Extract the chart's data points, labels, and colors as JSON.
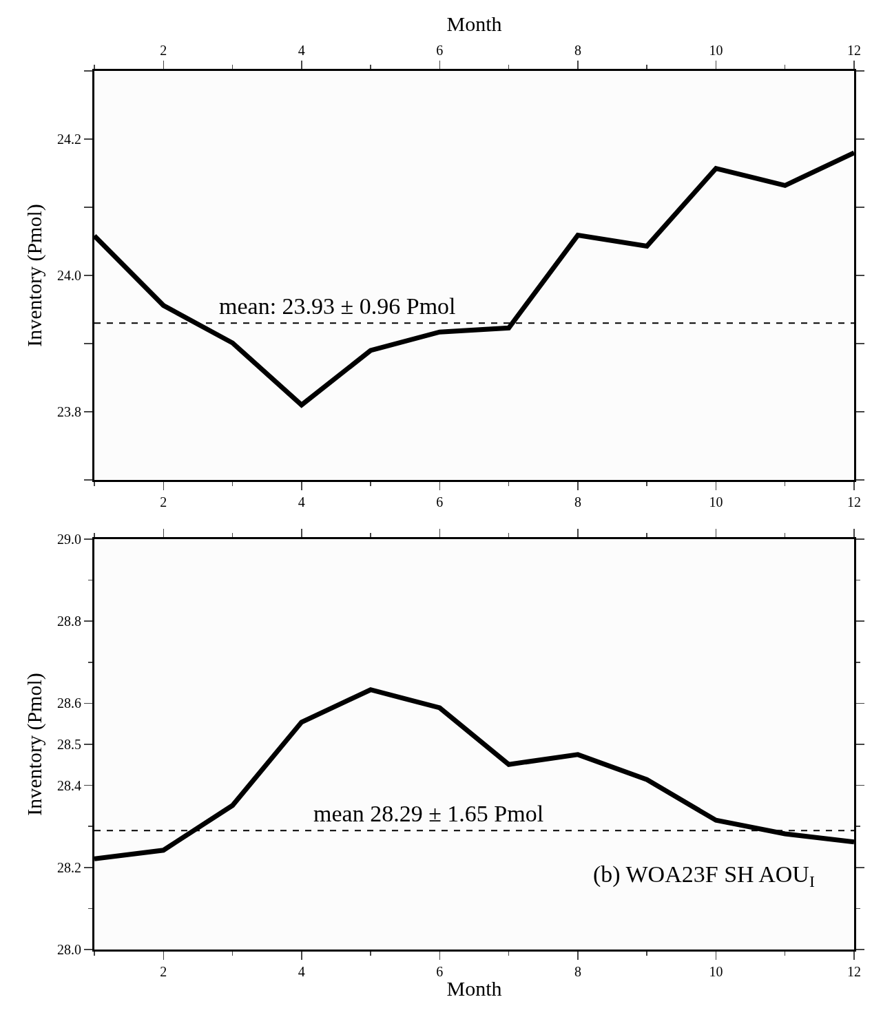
{
  "chart_data": [
    {
      "type": "line",
      "x2label": "Month",
      "ylabel": "Inventory (Pmol)",
      "x": [
        1,
        2,
        3,
        4,
        5,
        6,
        7,
        8,
        9,
        10,
        11,
        12
      ],
      "series": [
        {
          "color": "#000000",
          "values": [
            24.058,
            23.956,
            23.901,
            23.81,
            23.89,
            23.917,
            23.923,
            24.059,
            24.043,
            24.157,
            24.132,
            24.18
          ]
        }
      ],
      "xlim": [
        1,
        12
      ],
      "xticks": [
        {
          "value": 1,
          "label": null
        },
        2,
        {
          "value": 3,
          "label": null
        },
        4,
        {
          "value": 5,
          "label": null
        },
        6,
        {
          "value": 7,
          "label": null
        },
        8,
        {
          "value": 9,
          "label": null
        },
        10,
        {
          "value": 11,
          "label": null
        },
        12
      ],
      "x2lim": [
        1,
        12
      ],
      "x2ticks": [
        {
          "value": 1,
          "label": null
        },
        2,
        {
          "value": 3,
          "label": null
        },
        4,
        {
          "value": 5,
          "label": null
        },
        6,
        {
          "value": 7,
          "label": null
        },
        8,
        {
          "value": 9,
          "label": null
        },
        10,
        {
          "value": 11,
          "label": null
        },
        12
      ],
      "ylim": [
        23.7,
        24.3
      ],
      "yticks": [
        {
          "value": 23.7,
          "label": null
        },
        "23.8",
        {
          "value": 23.9,
          "label": null
        },
        {
          "value": 24.0,
          "label": "24.0"
        },
        {
          "value": 24.1,
          "label": null
        },
        {
          "value": 24.2,
          "label": "24.2"
        },
        {
          "value": 24.3,
          "label": null
        }
      ],
      "ref_lines": [
        {
          "axis": "y",
          "value": 23.93,
          "label": "mean: 23.93 ± 0.96 Pmol",
          "color": "#000000",
          "line_style": "dashed"
        }
      ],
      "grid": false,
      "marker": "none",
      "line_style": "solid"
    },
    {
      "type": "line",
      "xlabel": "Month",
      "ylabel": "Inventory (Pmol)",
      "x": [
        1,
        2,
        3,
        4,
        5,
        6,
        7,
        8,
        9,
        10,
        11,
        12
      ],
      "series": [
        {
          "color": "#000000",
          "values": [
            28.221,
            28.242,
            28.351,
            28.554,
            28.633,
            28.589,
            28.451,
            28.475,
            28.414,
            28.315,
            28.282,
            28.262
          ]
        }
      ],
      "xlim": [
        1,
        12
      ],
      "xticks": [
        {
          "value": 1,
          "label": null
        },
        2,
        {
          "value": 3,
          "label": null
        },
        4,
        {
          "value": 5,
          "label": null
        },
        6,
        {
          "value": 7,
          "label": null
        },
        8,
        {
          "value": 9,
          "label": null
        },
        10,
        {
          "value": 11,
          "label": null
        },
        12
      ],
      "ylim": [
        28.0,
        29.0
      ],
      "yticks": [
        {
          "value": 28.0,
          "label": "28.0"
        },
        {
          "value": 28.1,
          "label": null
        },
        28.2,
        {
          "value": 28.3,
          "label": null
        },
        28.4,
        28.5,
        28.6,
        {
          "value": 28.7,
          "label": null
        },
        28.8,
        {
          "value": 28.9,
          "label": null
        },
        {
          "value": 29.0,
          "label": "29.0"
        }
      ],
      "ref_lines": [
        {
          "axis": "y",
          "value": 28.29,
          "label": "mean 28.29 ± 1.65 Pmol",
          "color": "#000000",
          "line_style": "dashed"
        }
      ],
      "annotations": [
        "(b) WOA23F SH AOU$_{I}$"
      ],
      "grid": false,
      "marker": "none",
      "line_style": "solid"
    }
  ]
}
